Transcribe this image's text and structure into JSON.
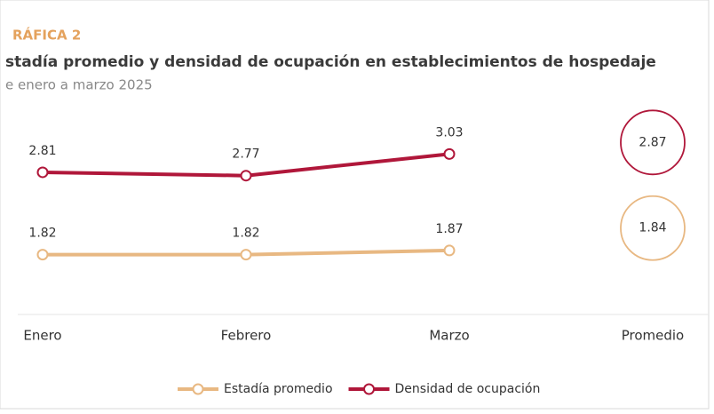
{
  "chart_data": {
    "type": "line",
    "kicker": "RÁFICA 2",
    "title": "stadía promedio y densidad de ocupación en establecimientos de hospedaje",
    "subtitle": "e enero a marzo 2025",
    "categories": [
      "Enero",
      "Febrero",
      "Marzo"
    ],
    "average_label": "Promedio",
    "series": [
      {
        "name": "Estadía promedio",
        "color": "#e8b882",
        "values": [
          1.82,
          1.82,
          1.87
        ],
        "average": 1.84
      },
      {
        "name": "Densidad de ocupación",
        "color": "#b0173a",
        "values": [
          2.81,
          2.77,
          3.03
        ],
        "average": 2.87
      }
    ],
    "ylim": [
      1.1,
      3.6
    ],
    "grid": false
  }
}
